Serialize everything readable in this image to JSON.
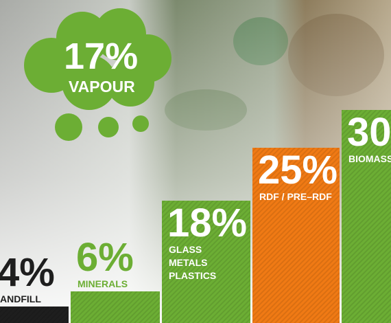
{
  "chart_data": {
    "type": "bar",
    "categories": [
      "ANDFILL",
      "MINERALS",
      [
        "GLASS",
        "METALS",
        "PLASTICS"
      ],
      "RDF / PRE–RDF",
      "BIOMASS"
    ],
    "values": [
      4,
      6,
      18,
      25,
      30
    ],
    "value_labels": [
      "4%",
      "6%",
      "18%",
      "25%",
      "30"
    ],
    "colors": [
      "#1e1e1e",
      "#6cae34",
      "#6cae34",
      "#f07a14",
      "#6cae34"
    ],
    "cloud": {
      "value": 17,
      "value_label": "17%",
      "label": "VAPOUR",
      "color": "#6cae34"
    }
  }
}
